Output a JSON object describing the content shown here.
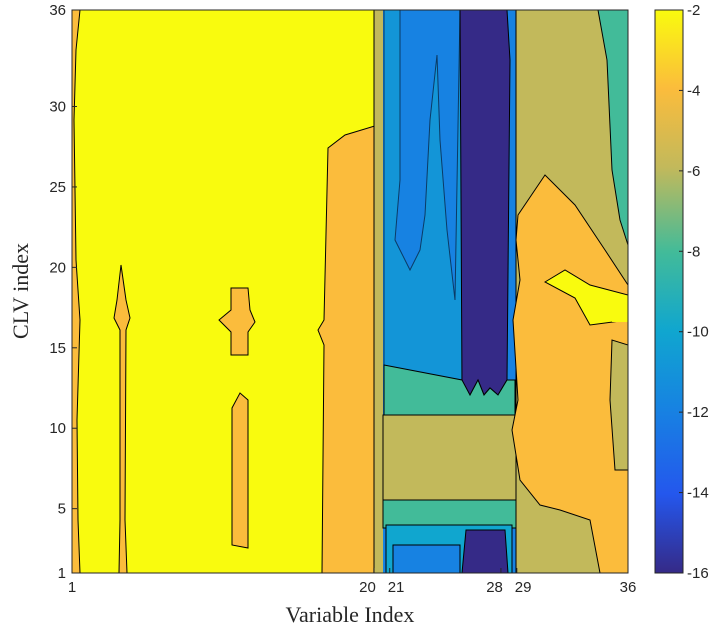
{
  "chart_data": {
    "type": "contour",
    "title": "",
    "xlabel": "Variable Index",
    "ylabel": "CLV index",
    "xlim": [
      1,
      36
    ],
    "ylim": [
      1,
      36
    ],
    "x_ticks": [
      1,
      20,
      21,
      28,
      29,
      36
    ],
    "x_tick_labels": [
      "1",
      "20",
      "21",
      "28",
      "29",
      "36"
    ],
    "y_ticks": [
      1,
      5,
      10,
      15,
      20,
      25,
      30,
      36
    ],
    "y_tick_labels": [
      "1",
      "5",
      "10",
      "15",
      "20",
      "25",
      "30",
      "36"
    ],
    "colorbar": {
      "range": [
        -16,
        -2
      ],
      "ticks": [
        -2,
        -4,
        -6,
        -8,
        -10,
        -12,
        -14,
        -16
      ],
      "tick_labels": [
        "-2",
        "-4",
        "-6",
        "-8",
        "-10",
        "-12",
        "-14",
        "-16"
      ],
      "colormap": "parula"
    },
    "contour_levels": [
      -2,
      -3,
      -4,
      -6,
      -8,
      -10,
      -12,
      -14,
      -16
    ],
    "regions": [
      {
        "x_range": [
          1,
          20
        ],
        "y_range": [
          1,
          36
        ],
        "value": -2.5
      },
      {
        "x_range": [
          1,
          1.5
        ],
        "y_range": [
          1,
          36
        ],
        "value": -3.5
      },
      {
        "x_range": [
          4,
          4.3
        ],
        "y_range": [
          2,
          20
        ],
        "value": -3.5
      },
      {
        "x_range": [
          11,
          12
        ],
        "y_range": [
          14.5,
          18.7
        ],
        "value": -3.5
      },
      {
        "x_range": [
          11,
          12
        ],
        "y_range": [
          3,
          12
        ],
        "value": -3.5
      },
      {
        "x_range": [
          18,
          20
        ],
        "y_range": [
          1,
          28
        ],
        "value": -3.5
      },
      {
        "x_range": [
          21,
          25
        ],
        "y_range": [
          1,
          36
        ],
        "value": -12
      },
      {
        "x_range": [
          25,
          28
        ],
        "y_range": [
          1,
          36
        ],
        "value": -15.5
      },
      {
        "x_range": [
          21,
          28
        ],
        "y_range": [
          7.5,
          11
        ],
        "value": -6
      },
      {
        "x_range": [
          29,
          36
        ],
        "y_range": [
          1,
          36
        ],
        "value": -5.5
      },
      {
        "x_range": [
          29,
          35
        ],
        "y_range": [
          2,
          27
        ],
        "value": -3.5
      },
      {
        "x_range": [
          30,
          36
        ],
        "y_range": [
          14,
          19
        ],
        "value": -2.5
      }
    ]
  }
}
